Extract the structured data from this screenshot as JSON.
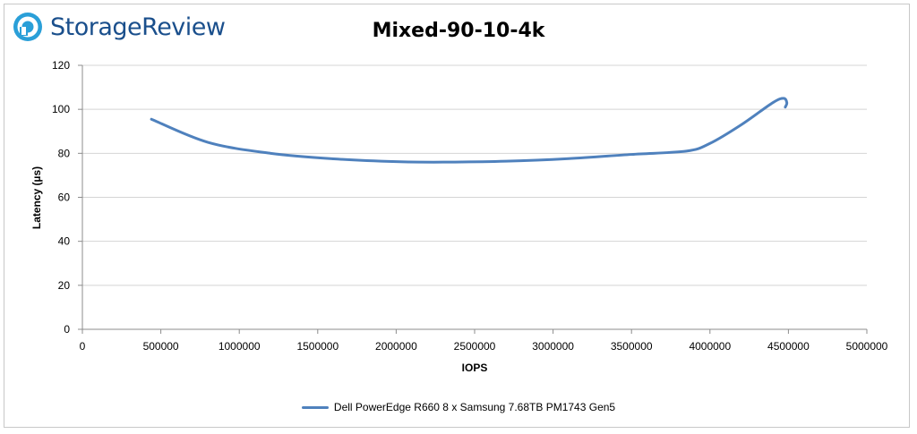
{
  "brand": {
    "name": "StorageReview",
    "accent": "#1a4f8c",
    "icon": "storagereview-logo-icon"
  },
  "chart_data": {
    "type": "line",
    "title": "Mixed-90-10-4k",
    "xlabel": "IOPS",
    "ylabel": "Latency (µs)",
    "xlim": [
      0,
      5000000
    ],
    "ylim": [
      0,
      120
    ],
    "xticks": [
      0,
      500000,
      1000000,
      1500000,
      2000000,
      2500000,
      3000000,
      3500000,
      4000000,
      4500000,
      5000000
    ],
    "yticks": [
      0,
      20,
      40,
      60,
      80,
      100,
      120
    ],
    "grid": true,
    "legend_position": "bottom",
    "series": [
      {
        "name": "Dell PowerEdge R660 8 x Samsung 7.68TB PM1743 Gen5",
        "color": "#4f81bd",
        "x": [
          440000,
          800000,
          1200000,
          1600000,
          2000000,
          2300000,
          2700000,
          3100000,
          3500000,
          3850000,
          4000000,
          4200000,
          4400000,
          4470000,
          4490000,
          4480000
        ],
        "y": [
          95.5,
          85,
          80,
          77.5,
          76.2,
          76,
          76.4,
          77.6,
          79.5,
          81,
          84.5,
          93,
          103,
          105,
          103,
          101
        ]
      }
    ]
  }
}
